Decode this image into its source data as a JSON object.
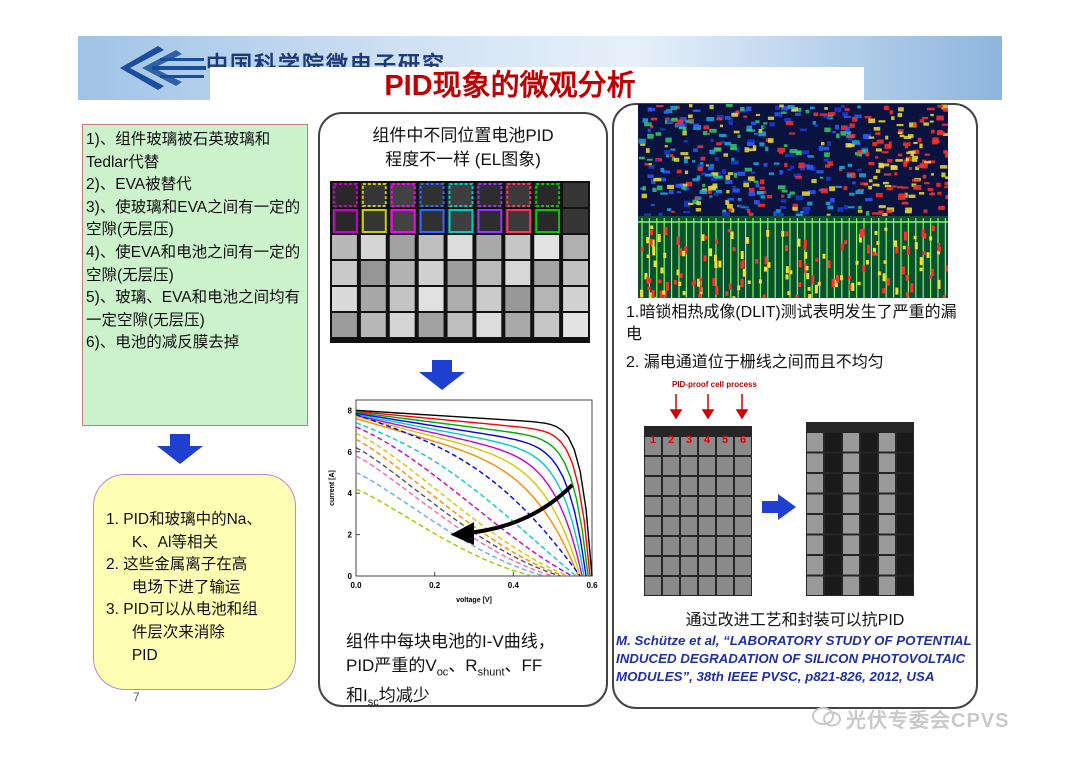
{
  "header": {
    "org_name": "中国科学院微电子研究所",
    "title": "PID现象的微观分析"
  },
  "left_box": {
    "items": [
      "1)、组件玻璃被石英玻璃和Tedlar代替",
      "2)、EVA被替代",
      "3)、使玻璃和EVA之间有一定的空隙(无层压)",
      "4)、使EVA和电池之间有一定的空隙(无层压)",
      "5)、玻璃、EVA和电池之间均有一定空隙(无层压)",
      "6)、电池的减反膜去掉"
    ]
  },
  "conclusion_box": {
    "items": [
      "1. PID和玻璃中的Na、\n      K、Al等相关",
      "2. 这些金属离子在高\n      电场下进了输运",
      "3. PID可以从电池和组\n      件层次来消除\n      PID"
    ]
  },
  "page_number": "7",
  "middle_panel": {
    "caption_top": "组件中不同位置电池PID\n程度不一样 (EL图象)",
    "chart_caption_line1": "组件中每块电池的I-V曲线，",
    "chart_caption_line2_a": "PID严重的V",
    "chart_caption_line2_sub1": "oc",
    "chart_caption_line2_b": "、R",
    "chart_caption_line2_sub2": "shunt",
    "chart_caption_line2_c": "、FF",
    "chart_caption_line3_a": "和I",
    "chart_caption_line3_sub": "sc",
    "chart_caption_line3_b": "均减少"
  },
  "chart_data": {
    "type": "line",
    "xlabel": "voltage [V]",
    "ylabel": "current [A]",
    "xlim": [
      0.0,
      0.6
    ],
    "ylim": [
      0,
      8.5
    ],
    "x_ticks": [
      "0.0",
      "0.2",
      "0.4",
      "0.6"
    ],
    "y_ticks": [
      "0",
      "2",
      "4",
      "6",
      "8"
    ],
    "colors": [
      "#000000",
      "#ff0000",
      "#00aa00",
      "#0000ff",
      "#00cccc",
      "#cc00cc",
      "#cccc00",
      "#ff8800",
      "#555555",
      "#ff66aa",
      "#66aaff",
      "#99cc00",
      "#8844ff",
      "#aa6633",
      "#008888",
      "#cc3300"
    ],
    "solid_series": [
      {
        "isc": 8.0,
        "voc": 0.6,
        "ff": 0.9
      },
      {
        "isc": 7.95,
        "voc": 0.595,
        "ff": 0.85
      },
      {
        "isc": 7.9,
        "voc": 0.59,
        "ff": 0.8
      },
      {
        "isc": 7.85,
        "voc": 0.585,
        "ff": 0.75
      },
      {
        "isc": 7.8,
        "voc": 0.58,
        "ff": 0.7
      },
      {
        "isc": 7.75,
        "voc": 0.575,
        "ff": 0.65
      },
      {
        "isc": 7.7,
        "voc": 0.57,
        "ff": 0.6
      },
      {
        "isc": 7.6,
        "voc": 0.565,
        "ff": 0.55
      }
    ],
    "dashed_series": [
      {
        "isc": 7.8,
        "voc": 0.57,
        "ff": 0.45
      },
      {
        "isc": 7.4,
        "voc": 0.56,
        "ff": 0.38
      },
      {
        "isc": 7.2,
        "voc": 0.55,
        "ff": 0.32
      },
      {
        "isc": 6.9,
        "voc": 0.54,
        "ff": 0.28
      },
      {
        "isc": 6.6,
        "voc": 0.53,
        "ff": 0.26
      },
      {
        "isc": 6.2,
        "voc": 0.52,
        "ff": 0.25
      },
      {
        "isc": 5.8,
        "voc": 0.5,
        "ff": 0.25
      },
      {
        "isc": 5.0,
        "voc": 0.48,
        "ff": 0.25
      },
      {
        "isc": 4.2,
        "voc": 0.45,
        "ff": 0.25
      }
    ]
  },
  "right_panel": {
    "text1": "1.暗锁相热成像(DLIT)测试表明发生了严重的漏电",
    "text2": "2. 漏电通道位于栅线之间而且不均匀",
    "process_label": "PID-proof cell process",
    "cell_numbers": [
      "1",
      "2",
      "3",
      "4",
      "5",
      "6"
    ],
    "caption": "通过改进工艺和封装可以抗PID",
    "reference": "M. Schütze et al, “LABORATORY STUDY OF POTENTIAL INDUCED DEGRADATION OF SILICON PHOTOVOLTAIC MODULES”, 38th IEEE PVSC, p821-826, 2012, USA"
  },
  "watermark": "光伏专委会CPVS"
}
